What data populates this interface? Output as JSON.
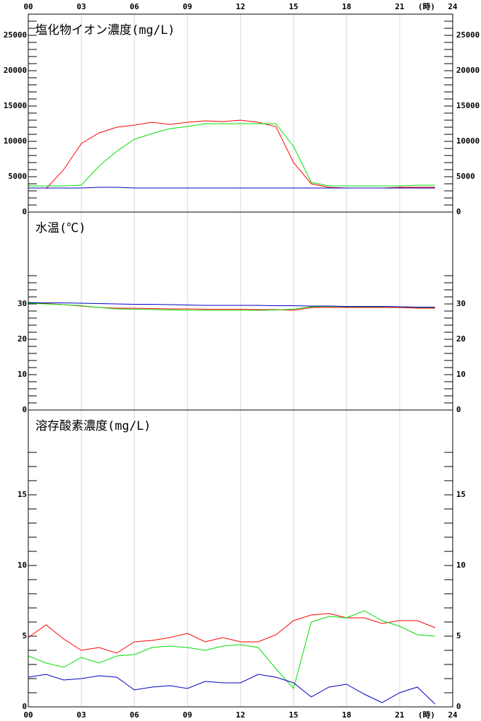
{
  "x_axis": {
    "xlim": [
      0,
      24
    ],
    "xticks": [
      {
        "value": 0,
        "label": "00"
      },
      {
        "value": 3,
        "label": "03"
      },
      {
        "value": 6,
        "label": "06"
      },
      {
        "value": 9,
        "label": "09"
      },
      12,
      15,
      18,
      21,
      24
    ],
    "unit_label": "(時)"
  },
  "chart_data": [
    {
      "type": "line",
      "title": "塩化物イオン濃度(mg/L)",
      "grid": true,
      "x": [
        0,
        1,
        2,
        3,
        4,
        5,
        6,
        7,
        8,
        9,
        10,
        11,
        12,
        13,
        14,
        15,
        16,
        17,
        18,
        19,
        20,
        21,
        22,
        23
      ],
      "ylim": [
        0,
        28000
      ],
      "yticks": [
        0,
        5000,
        10000,
        15000,
        20000,
        25000
      ],
      "minor_yticks": [
        1000,
        2000,
        3000,
        4000,
        6000,
        7000,
        8000,
        9000,
        11000,
        12000,
        13000,
        14000,
        16000,
        17000,
        18000,
        19000,
        21000,
        22000,
        23000,
        24000,
        26000,
        27000
      ],
      "series": [
        {
          "color": "#ff0000",
          "values": [
            null,
            3300,
            6000,
            9700,
            11200,
            12000,
            12300,
            12700,
            12400,
            12700,
            12900,
            12800,
            13000,
            12700,
            12100,
            7000,
            4000,
            3500,
            3400,
            3400,
            3400,
            3500,
            3500,
            3500
          ]
        },
        {
          "color": "#00e000",
          "values": [
            3700,
            3700,
            3700,
            3800,
            6500,
            8600,
            10300,
            11100,
            11800,
            12100,
            12500,
            12500,
            12500,
            12500,
            12500,
            9300,
            4200,
            3700,
            3700,
            3700,
            3700,
            3700,
            3800,
            3800
          ]
        },
        {
          "color": "#0000c0",
          "values": [
            3400,
            3400,
            3400,
            3400,
            3500,
            3500,
            3400,
            3400,
            3400,
            3400,
            3400,
            3400,
            3400,
            3400,
            3400,
            3400,
            3400,
            3400,
            3400,
            3400,
            3400,
            3400,
            3400,
            3400
          ]
        }
      ]
    },
    {
      "type": "line",
      "title": "水温(℃)",
      "grid": true,
      "x": [
        0,
        1,
        2,
        3,
        4,
        5,
        6,
        7,
        8,
        9,
        10,
        11,
        12,
        13,
        14,
        15,
        16,
        17,
        18,
        19,
        20,
        21,
        22,
        23
      ],
      "ylim": [
        0,
        56
      ],
      "yticks": [
        0,
        10,
        20,
        30
      ],
      "minor_yticks": [
        2,
        4,
        6,
        8,
        12,
        14,
        16,
        18,
        22,
        24,
        26,
        28,
        32,
        34,
        36,
        38
      ],
      "series": [
        {
          "color": "#ff0000",
          "values": [
            30.3,
            30.1,
            29.8,
            29.4,
            29.0,
            28.8,
            28.8,
            28.7,
            28.6,
            28.6,
            28.5,
            28.5,
            28.5,
            28.4,
            28.4,
            28.2,
            29.0,
            29.0,
            29.0,
            29.0,
            29.0,
            29.0,
            28.8,
            28.8
          ]
        },
        {
          "color": "#00e000",
          "values": [
            30.2,
            30.0,
            29.8,
            29.5,
            29.0,
            28.6,
            28.5,
            28.4,
            28.3,
            28.2,
            28.2,
            28.2,
            28.2,
            28.2,
            28.3,
            28.5,
            29.2,
            29.3,
            29.2,
            29.2,
            29.2,
            29.2,
            29.0,
            29.0
          ]
        },
        {
          "color": "#0000c0",
          "values": [
            30.4,
            30.3,
            30.3,
            30.2,
            30.1,
            30.0,
            29.9,
            29.9,
            29.8,
            29.7,
            29.6,
            29.6,
            29.6,
            29.6,
            29.5,
            29.5,
            29.4,
            29.4,
            29.3,
            29.3,
            29.3,
            29.2,
            29.1,
            29.1
          ]
        }
      ]
    },
    {
      "type": "line",
      "title": "溶存酸素濃度(mg/L)",
      "grid": true,
      "x": [
        0,
        1,
        2,
        3,
        4,
        5,
        6,
        7,
        8,
        9,
        10,
        11,
        12,
        13,
        14,
        15,
        16,
        17,
        18,
        19,
        20,
        21,
        22,
        23
      ],
      "ylim": [
        0,
        21
      ],
      "yticks": [
        0,
        5,
        10,
        15
      ],
      "minor_yticks": [
        1,
        2,
        3,
        4,
        6,
        7,
        8,
        9,
        11,
        12,
        13,
        14,
        16,
        17,
        18
      ],
      "series": [
        {
          "color": "#ff0000",
          "values": [
            4.9,
            5.8,
            4.8,
            4.0,
            4.2,
            3.8,
            4.6,
            4.7,
            4.9,
            5.2,
            4.6,
            4.9,
            4.6,
            4.6,
            5.1,
            6.1,
            6.5,
            6.6,
            6.3,
            6.3,
            5.9,
            6.1,
            6.1,
            5.6
          ]
        },
        {
          "color": "#00e000",
          "values": [
            3.6,
            3.1,
            2.8,
            3.5,
            3.1,
            3.6,
            3.7,
            4.2,
            4.3,
            4.2,
            4.0,
            4.3,
            4.4,
            4.2,
            2.7,
            1.3,
            6.0,
            6.4,
            6.3,
            6.8,
            6.1,
            5.7,
            5.1,
            5.0
          ]
        },
        {
          "color": "#0000c0",
          "values": [
            2.1,
            2.3,
            1.9,
            2.0,
            2.2,
            2.1,
            1.2,
            1.4,
            1.5,
            1.3,
            1.8,
            1.7,
            1.7,
            2.3,
            2.1,
            1.7,
            0.7,
            1.4,
            1.6,
            0.9,
            0.3,
            1.0,
            1.4,
            0.2
          ]
        }
      ]
    }
  ]
}
